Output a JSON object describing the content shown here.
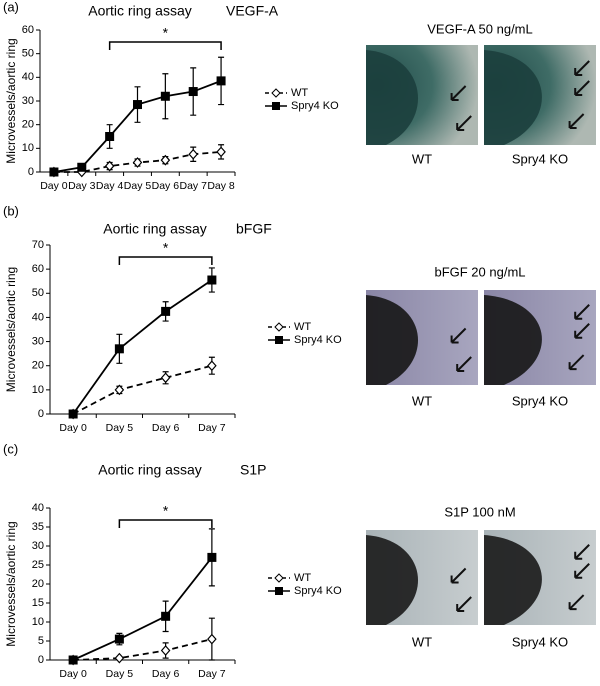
{
  "chart_data": [
    {
      "type": "line",
      "title": "Aortic ring assay",
      "subtitle": "VEGF-A",
      "ylabel": "Microvessels/aortic ring",
      "categories": [
        "Day 0",
        "Day 3",
        "Day 4",
        "Day 5",
        "Day 6",
        "Day 7",
        "Day 8"
      ],
      "series": [
        {
          "name": "WT",
          "color": "#000000",
          "dashed": true,
          "marker": "diamond",
          "values": [
            0,
            0,
            2.5,
            4,
            5,
            7.5,
            8.5
          ],
          "errors": [
            0,
            0,
            1.5,
            1.5,
            1.5,
            3,
            3
          ]
        },
        {
          "name": "Spry4 KO",
          "color": "#000000",
          "dashed": false,
          "marker": "square",
          "values": [
            0,
            2,
            15,
            28.5,
            32,
            34,
            38.5
          ],
          "errors": [
            0,
            0,
            5,
            7.5,
            9.5,
            10,
            10
          ]
        }
      ],
      "ylim": [
        0,
        60
      ],
      "yticks": [
        0,
        10,
        20,
        30,
        40,
        50,
        60
      ],
      "annotation": {
        "text": "*",
        "from": 2,
        "to": 6
      }
    },
    {
      "type": "line",
      "title": "Aortic ring assay",
      "subtitle": "bFGF",
      "ylabel": "Microvessels/aortic ring",
      "categories": [
        "Day 0",
        "Day 5",
        "Day 6",
        "Day 7"
      ],
      "series": [
        {
          "name": "WT",
          "color": "#000000",
          "dashed": true,
          "marker": "diamond",
          "values": [
            0,
            10,
            15,
            20
          ],
          "errors": [
            0,
            1.5,
            2.5,
            3.5
          ]
        },
        {
          "name": "Spry4 KO",
          "color": "#000000",
          "dashed": false,
          "marker": "square",
          "values": [
            0,
            27,
            42.5,
            55.5
          ],
          "errors": [
            0,
            6,
            4,
            5
          ]
        }
      ],
      "ylim": [
        0,
        70
      ],
      "yticks": [
        0,
        10,
        20,
        30,
        40,
        50,
        60,
        70
      ],
      "annotation": {
        "text": "*",
        "from": 1,
        "to": 3
      }
    },
    {
      "type": "line",
      "title": "Aortic ring assay",
      "subtitle": "S1P",
      "ylabel": "Microvessels/aortic ring",
      "categories": [
        "Day 0",
        "Day 5",
        "Day 6",
        "Day 7"
      ],
      "series": [
        {
          "name": "WT",
          "color": "#000000",
          "dashed": true,
          "marker": "diamond",
          "values": [
            0,
            0.5,
            2.5,
            5.5
          ],
          "errors": [
            0,
            0.3,
            2,
            5.5
          ]
        },
        {
          "name": "Spry4 KO",
          "color": "#000000",
          "dashed": false,
          "marker": "square",
          "values": [
            0,
            5.5,
            11.5,
            27
          ],
          "errors": [
            0,
            1.5,
            4,
            7.5
          ]
        }
      ],
      "ylim": [
        0,
        40
      ],
      "yticks": [
        0,
        5,
        10,
        15,
        20,
        25,
        30,
        35,
        40
      ],
      "annotation": {
        "text": "*",
        "from": 1,
        "to": 3
      }
    }
  ],
  "panels": [
    {
      "label": "(a)",
      "photo_title": "VEGF-A 50 ng/mL",
      "photo_labels": [
        "WT",
        "Spry4 KO"
      ]
    },
    {
      "label": "(b)",
      "photo_title": "bFGF 20 ng/mL",
      "photo_labels": [
        "WT",
        "Spry4 KO"
      ]
    },
    {
      "label": "(c)",
      "photo_title": "S1P 100 nM",
      "photo_labels": [
        "WT",
        "Spry4 KO"
      ]
    }
  ]
}
